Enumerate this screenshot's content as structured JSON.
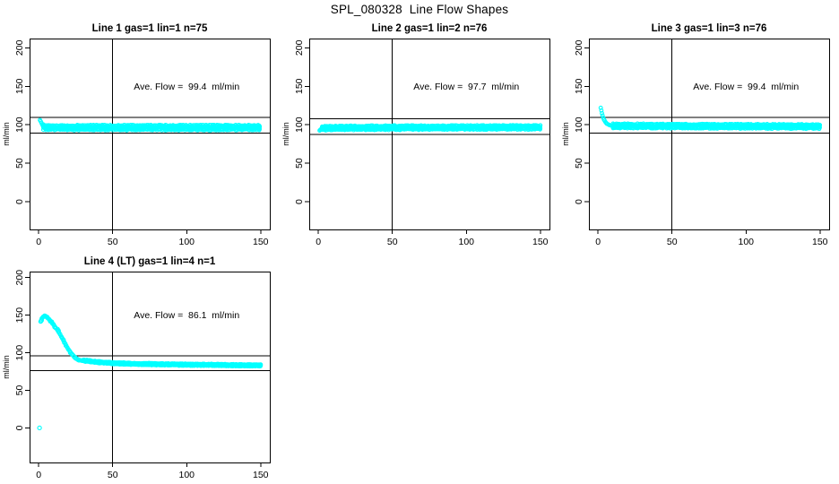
{
  "figure": {
    "title": "SPL_080328  Line Flow Shapes"
  },
  "style": {
    "point_color": "#00ffff",
    "axis_color": "#000000",
    "text_color": "#000000",
    "background": "#ffffff"
  },
  "chart_data": [
    {
      "type": "scatter",
      "title": "Line 1 gas=1 lin=1 n=75",
      "annotation": "Ave. Flow =  99.4  ml/min",
      "ave_flow_ml_min": 99.4,
      "n_traces": 75,
      "ylabel": "ml/min",
      "xticks": [
        0,
        50,
        100,
        150
      ],
      "yticks": [
        0,
        50,
        100,
        150,
        200
      ],
      "xlim": [
        -6.2,
        156.2
      ],
      "ylim": [
        -36,
        212
      ],
      "hlines": [
        109.4,
        89.4
      ],
      "vline": 50,
      "annotation_pos": [
        100,
        150
      ],
      "grid": false,
      "legend": false,
      "head_repeat": 1,
      "head": [
        [
          0.8,
          106
        ],
        [
          1.3,
          104.5
        ],
        [
          1.8,
          102.5
        ],
        [
          2.3,
          100.5
        ],
        [
          2.8,
          99
        ]
      ],
      "band": {
        "from": 3,
        "to": 150,
        "step": 1.1,
        "halfwidth": 2.8,
        "rows": 5,
        "jitter": 1.4,
        "center": [
          [
            3,
            97
          ],
          [
            6,
            96.6
          ],
          [
            10,
            96.4
          ],
          [
            20,
            96.3
          ],
          [
            40,
            96.3
          ],
          [
            70,
            96.3
          ],
          [
            100,
            96.3
          ],
          [
            130,
            96.3
          ],
          [
            150,
            96.3
          ]
        ]
      },
      "outliers": []
    },
    {
      "type": "scatter",
      "title": "Line 2 gas=1 lin=2 n=76",
      "annotation": "Ave. Flow =  97.7  ml/min",
      "ave_flow_ml_min": 97.7,
      "n_traces": 76,
      "ylabel": "ml/min",
      "xticks": [
        0,
        50,
        100,
        150
      ],
      "yticks": [
        0,
        50,
        100,
        150,
        200
      ],
      "xlim": [
        -6.2,
        156.2
      ],
      "ylim": [
        -36,
        212
      ],
      "hlines": [
        107.7,
        87.7
      ],
      "vline": 50,
      "annotation_pos": [
        100,
        150
      ],
      "grid": false,
      "legend": false,
      "head_repeat": 1,
      "head": [
        [
          0.8,
          92.5
        ],
        [
          1.3,
          93.5
        ],
        [
          1.8,
          94.3
        ],
        [
          2.3,
          95
        ]
      ],
      "band": {
        "from": 2.5,
        "to": 150,
        "step": 1.1,
        "halfwidth": 2.3,
        "rows": 5,
        "jitter": 1.2,
        "center": [
          [
            2.5,
            95.3
          ],
          [
            10,
            95.8
          ],
          [
            30,
            96
          ],
          [
            60,
            96.2
          ],
          [
            100,
            96.4
          ],
          [
            150,
            96.6
          ]
        ]
      },
      "outliers": []
    },
    {
      "type": "scatter",
      "title": "Line 3 gas=1 lin=3 n=76",
      "annotation": "Ave. Flow =  99.4  ml/min",
      "ave_flow_ml_min": 99.4,
      "n_traces": 76,
      "ylabel": "ml/min",
      "xticks": [
        0,
        50,
        100,
        150
      ],
      "yticks": [
        0,
        50,
        100,
        150,
        200
      ],
      "xlim": [
        -6.2,
        156.2
      ],
      "ylim": [
        -36,
        212
      ],
      "hlines": [
        109.4,
        89.4
      ],
      "vline": 50,
      "annotation_pos": [
        100,
        150
      ],
      "grid": false,
      "legend": false,
      "head_repeat": 1,
      "head": [
        [
          1.8,
          122
        ],
        [
          2.2,
          118.5
        ],
        [
          2.6,
          115
        ],
        [
          3,
          112
        ],
        [
          3.5,
          109
        ],
        [
          4,
          106.8
        ],
        [
          4.5,
          105
        ],
        [
          5,
          103.5
        ],
        [
          5.5,
          102.3
        ],
        [
          6,
          101.3
        ],
        [
          6.8,
          100.4
        ],
        [
          7.6,
          99.7
        ],
        [
          8.4,
          99.2
        ],
        [
          9.2,
          98.8
        ]
      ],
      "band": {
        "from": 10,
        "to": 150,
        "step": 1.1,
        "halfwidth": 2.4,
        "rows": 5,
        "jitter": 1.2,
        "center": [
          [
            10,
            98.6
          ],
          [
            30,
            98.4
          ],
          [
            60,
            98.2
          ],
          [
            100,
            98
          ],
          [
            130,
            97.8
          ],
          [
            150,
            97.6
          ]
        ]
      },
      "outliers": []
    },
    {
      "type": "scatter",
      "title": "Line 4 (LT) gas=1 lin=4 n=1",
      "annotation": "Ave. Flow =  86.1  ml/min",
      "ave_flow_ml_min": 86.1,
      "n_traces": 1,
      "ylabel": "ml/min",
      "xticks": [
        0,
        50,
        100,
        150
      ],
      "yticks": [
        0,
        50,
        100,
        150,
        200
      ],
      "xlim": [
        -6.2,
        156.2
      ],
      "ylim": [
        -46,
        208
      ],
      "hlines": [
        96.1,
        76.1
      ],
      "vline": 50,
      "annotation_pos": [
        100,
        150
      ],
      "grid": false,
      "legend": false,
      "head_repeat": 2,
      "head": [
        [
          1.2,
          141.5
        ],
        [
          1.7,
          143.5
        ],
        [
          2.2,
          145.5
        ],
        [
          2.7,
          147
        ],
        [
          3.2,
          148
        ],
        [
          3.7,
          148.6
        ],
        [
          4.2,
          148.8
        ],
        [
          4.7,
          148.5
        ],
        [
          5.2,
          147.8
        ],
        [
          5.7,
          146.9
        ],
        [
          6.2,
          145.9
        ],
        [
          6.8,
          144.8
        ],
        [
          7.4,
          143.6
        ],
        [
          8,
          142.3
        ],
        [
          8.6,
          140.9
        ],
        [
          9.2,
          139.4
        ],
        [
          9.8,
          137.9
        ],
        [
          10.4,
          136.3
        ],
        [
          11,
          134.6
        ],
        [
          11.7,
          132.7
        ],
        [
          12.4,
          130.7
        ],
        [
          13.1,
          128.6
        ],
        [
          13.8,
          126.4
        ],
        [
          14.5,
          124.1
        ],
        [
          15.2,
          121.7
        ],
        [
          15.9,
          119.2
        ],
        [
          16.6,
          116.7
        ],
        [
          17.3,
          114.2
        ],
        [
          18,
          111.7
        ],
        [
          18.7,
          109.3
        ],
        [
          19.4,
          106.9
        ],
        [
          20.1,
          104.6
        ],
        [
          20.9,
          102.3
        ],
        [
          21.7,
          100.2
        ],
        [
          22.5,
          98.3
        ],
        [
          23.3,
          96.5
        ],
        [
          24.1,
          94.9
        ],
        [
          24.9,
          93.5
        ],
        [
          25.7,
          92.3
        ],
        [
          26.5,
          91.3
        ],
        [
          27.3,
          90.6
        ],
        [
          28.1,
          90
        ],
        [
          28.9,
          89.6
        ],
        [
          29.7,
          89.3
        ]
      ],
      "band": {
        "from": 30,
        "to": 150,
        "step": 0.8,
        "halfwidth": 1.0,
        "rows": 3,
        "jitter": 0.7,
        "center": [
          [
            30,
            89.8
          ],
          [
            33,
            89
          ],
          [
            36,
            88.3
          ],
          [
            40,
            87.5
          ],
          [
            45,
            86.8
          ],
          [
            50,
            86.2
          ],
          [
            55,
            85.8
          ],
          [
            60,
            85.5
          ],
          [
            70,
            85
          ],
          [
            80,
            84.7
          ],
          [
            90,
            84.4
          ],
          [
            100,
            84.2
          ],
          [
            110,
            84
          ],
          [
            120,
            83.8
          ],
          [
            130,
            83.5
          ],
          [
            140,
            83.3
          ],
          [
            150,
            83.2
          ]
        ]
      },
      "outliers": [
        [
          0.5,
          0
        ]
      ]
    }
  ]
}
